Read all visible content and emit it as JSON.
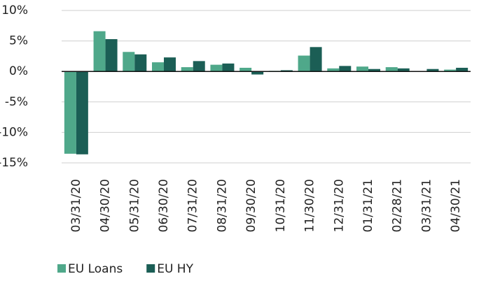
{
  "chart_data": {
    "type": "bar",
    "categories": [
      "03/31/20",
      "04/30/20",
      "05/31/20",
      "06/30/20",
      "07/31/20",
      "08/31/20",
      "09/30/20",
      "10/31/20",
      "11/30/20",
      "12/31/20",
      "01/31/21",
      "02/28/21",
      "03/31/21",
      "04/30/21"
    ],
    "series": [
      {
        "name": "EU Loans",
        "color": "#4fa88a",
        "values": [
          -13.5,
          6.6,
          3.2,
          1.5,
          0.7,
          1.1,
          0.6,
          0.1,
          2.6,
          0.5,
          0.8,
          0.7,
          0.0,
          0.3
        ]
      },
      {
        "name": "EU HY",
        "color": "#1b5e55",
        "values": [
          -13.6,
          5.3,
          2.8,
          2.3,
          1.7,
          1.3,
          -0.5,
          0.2,
          4.0,
          0.9,
          0.4,
          0.5,
          0.4,
          0.6
        ]
      }
    ],
    "ylim": [
      -15,
      10
    ],
    "yticks": [
      {
        "value": -15,
        "label": "-15%"
      },
      {
        "value": -10,
        "label": "-10%"
      },
      {
        "value": -5,
        "label": "-5%"
      },
      {
        "value": 0,
        "label": "0%"
      },
      {
        "value": 5,
        "label": "5%"
      },
      {
        "value": 10,
        "label": "10%"
      }
    ],
    "grid": true,
    "legend": "bottom"
  }
}
